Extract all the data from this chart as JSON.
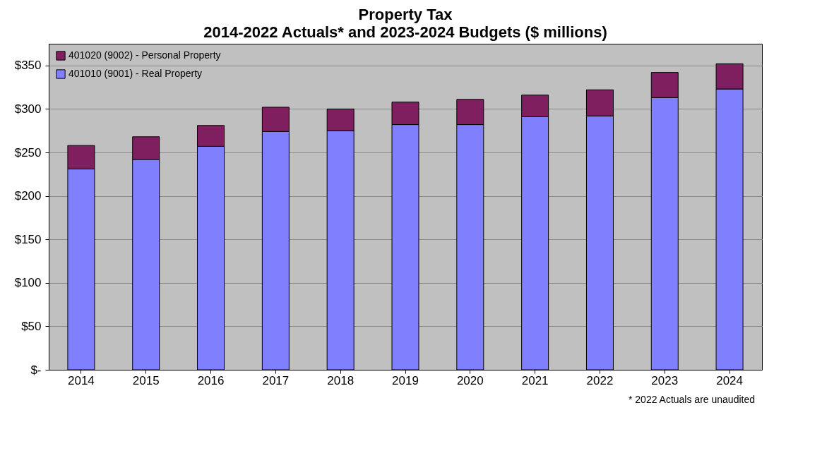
{
  "chart_data": {
    "type": "bar",
    "title": "Property Tax",
    "subtitle": "2014-2022 Actuals* and 2023-2024 Budgets ($ millions)",
    "categories": [
      "2014",
      "2015",
      "2016",
      "2017",
      "2018",
      "2019",
      "2020",
      "2021",
      "2022",
      "2023",
      "2024"
    ],
    "stacked": true,
    "series": [
      {
        "name": "401010 (9001) - Real Property",
        "color": "#8080ff",
        "values": [
          231,
          242,
          257,
          274,
          275,
          282,
          282,
          291,
          292,
          313,
          323
        ]
      },
      {
        "name": "401020 (9002) - Personal Property",
        "color": "#7f1f5f",
        "values": [
          27,
          26,
          24,
          28,
          25,
          26,
          29,
          25,
          30,
          29,
          29
        ]
      }
    ],
    "ylim": [
      0,
      375
    ],
    "yticks": [
      {
        "value": 0,
        "label": "$-"
      },
      {
        "value": 50,
        "label": "$50"
      },
      {
        "value": 100,
        "label": "$100"
      },
      {
        "value": 150,
        "label": "$150"
      },
      {
        "value": 200,
        "label": "$200"
      },
      {
        "value": 250,
        "label": "$250"
      },
      {
        "value": 300,
        "label": "$300"
      },
      {
        "value": 350,
        "label": "$350"
      }
    ],
    "grid": "y",
    "legend": "top left",
    "annotations": [
      "* 2022 Actuals are unaudited"
    ]
  }
}
